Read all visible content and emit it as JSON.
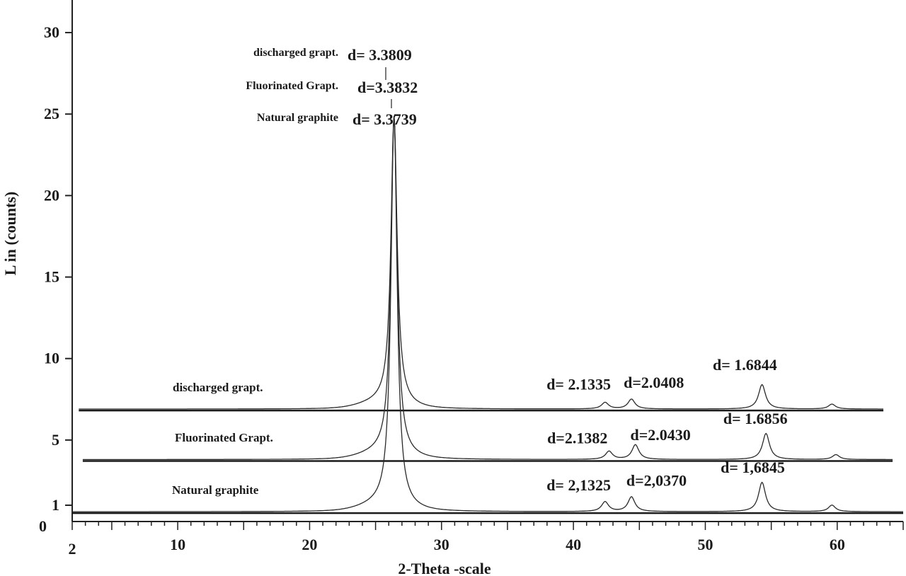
{
  "chart_data": {
    "type": "line",
    "title": "",
    "xlabel": "2-Theta -scale",
    "ylabel": "L in (counts)",
    "xlim": [
      2,
      65
    ],
    "ylim": [
      0,
      32
    ],
    "x_ticks": [
      2,
      10,
      20,
      30,
      40,
      50,
      60
    ],
    "y_ticks": [
      0,
      1,
      5,
      10,
      15,
      20,
      25,
      30
    ],
    "grid": false,
    "legend": "none",
    "series": [
      {
        "name": "discharged grapt.",
        "baseline": 6.9,
        "peaks": [
          {
            "x": 26.4,
            "y": 24.6
          },
          {
            "x": 42.4,
            "y": 7.3
          },
          {
            "x": 44.4,
            "y": 7.5
          },
          {
            "x": 54.3,
            "y": 8.4
          },
          {
            "x": 59.6,
            "y": 7.2
          }
        ]
      },
      {
        "name": "Fluorinated Grapt.",
        "baseline": 3.8,
        "peaks": [
          {
            "x": 26.4,
            "y": 24.6
          },
          {
            "x": 42.7,
            "y": 4.3
          },
          {
            "x": 44.7,
            "y": 4.7
          },
          {
            "x": 54.6,
            "y": 5.4
          },
          {
            "x": 59.9,
            "y": 4.1
          }
        ]
      },
      {
        "name": "Natural graphite",
        "baseline": 0.6,
        "peaks": [
          {
            "x": 26.4,
            "y": 24.6
          },
          {
            "x": 42.4,
            "y": 1.2
          },
          {
            "x": 44.4,
            "y": 1.5
          },
          {
            "x": 54.3,
            "y": 2.4
          },
          {
            "x": 59.6,
            "y": 1.0
          }
        ]
      }
    ],
    "annotations": {
      "top": [
        {
          "name": "discharged grapt.",
          "d": "d= 3.3809"
        },
        {
          "name": "Fluorinated Grapt.",
          "d": "d=3.3832"
        },
        {
          "name": "Natural graphite",
          "d": "d= 3.3739"
        }
      ],
      "peaks": [
        {
          "text": "d= 2.1335",
          "x": 40.4,
          "y": 8.1
        },
        {
          "text": "d=2.0408",
          "x": 46.1,
          "y": 8.2
        },
        {
          "text": "d= 1.6844",
          "x": 53.0,
          "y": 9.3
        },
        {
          "text": "d=2.1382",
          "x": 40.3,
          "y": 4.8
        },
        {
          "text": "d=2.0430",
          "x": 46.6,
          "y": 5.0
        },
        {
          "text": "d= 1.6856",
          "x": 53.8,
          "y": 6.0
        },
        {
          "text": "d= 2,1325",
          "x": 40.4,
          "y": 1.9
        },
        {
          "text": "d=2,0370",
          "x": 46.3,
          "y": 2.2
        },
        {
          "text": "d= 1,6845",
          "x": 53.6,
          "y": 3.0
        }
      ]
    }
  }
}
